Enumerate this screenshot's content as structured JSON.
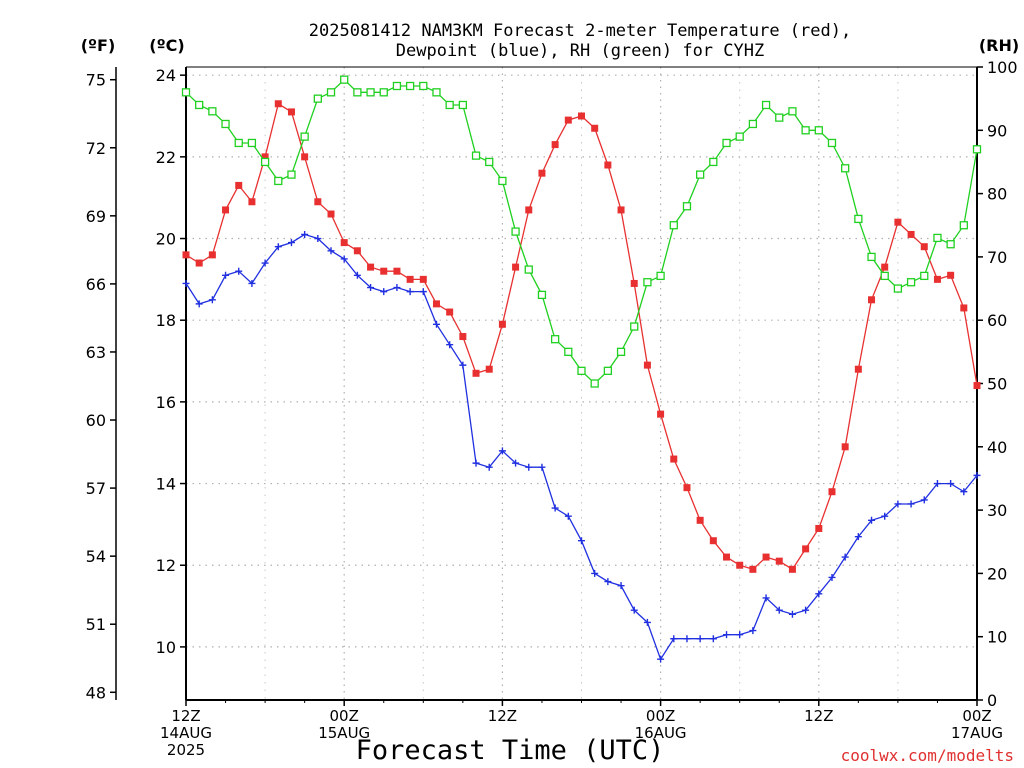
{
  "chart_data": {
    "type": "line",
    "title_line1": "2025081412 NAM3KM Forecast 2-meter Temperature (red),",
    "title_line2": "Dewpoint (blue), RH (green) for CYHZ",
    "xlabel": "Forecast Time (UTC)",
    "credit": "coolwx.com/modelts",
    "units": {
      "fahrenheit": "(ºF)",
      "celsius": "(ºC)",
      "rh": "(RH)"
    },
    "y_celsius": {
      "ticks": [
        "10",
        "12",
        "14",
        "16",
        "18",
        "20",
        "22",
        "24"
      ],
      "range": [
        8.7,
        24.2
      ]
    },
    "y_fahrenheit": {
      "ticks": [
        "48",
        "51",
        "54",
        "57",
        "60",
        "63",
        "66",
        "69",
        "72",
        "75"
      ]
    },
    "y_rh": {
      "ticks": [
        "0",
        "10",
        "20",
        "30",
        "40",
        "50",
        "60",
        "70",
        "80",
        "90",
        "100"
      ],
      "range": [
        0,
        100
      ]
    },
    "x_range_hours": [
      0,
      60
    ],
    "x_ticks": [
      {
        "hour": 0,
        "line1": "12Z",
        "line2": "14AUG",
        "line3": "2025"
      },
      {
        "hour": 12,
        "line1": "00Z",
        "line2": "15AUG",
        "line3": ""
      },
      {
        "hour": 24,
        "line1": "12Z",
        "line2": "",
        "line3": ""
      },
      {
        "hour": 36,
        "line1": "00Z",
        "line2": "16AUG",
        "line3": ""
      },
      {
        "hour": 48,
        "line1": "12Z",
        "line2": "",
        "line3": ""
      },
      {
        "hour": 60,
        "line1": "00Z",
        "line2": "17AUG",
        "line3": ""
      }
    ],
    "grid": true,
    "series": [
      {
        "name": "Temperature",
        "axis": "celsius",
        "color": "#e83030",
        "marker": "filled-square",
        "values": [
          19.6,
          19.4,
          19.6,
          20.7,
          21.3,
          20.9,
          22.0,
          23.3,
          23.1,
          22.0,
          20.9,
          20.6,
          19.9,
          19.7,
          19.3,
          19.2,
          19.2,
          19.0,
          19.0,
          18.4,
          18.2,
          17.6,
          16.7,
          16.8,
          17.9,
          19.3,
          20.7,
          21.6,
          22.3,
          22.9,
          23.0,
          22.7,
          21.8,
          20.7,
          18.9,
          16.9,
          15.7,
          14.6,
          13.9,
          13.1,
          12.6,
          12.2,
          12.0,
          11.9,
          12.2,
          12.1,
          11.9,
          12.4,
          12.9,
          13.8,
          14.9,
          16.8,
          18.5,
          19.3,
          20.4,
          20.1,
          19.8,
          19.0,
          19.1,
          18.3,
          16.4
        ]
      },
      {
        "name": "Dewpoint",
        "axis": "celsius",
        "color": "#2030e0",
        "marker": "plus",
        "values": [
          18.9,
          18.4,
          18.5,
          19.1,
          19.2,
          18.9,
          19.4,
          19.8,
          19.9,
          20.1,
          20.0,
          19.7,
          19.5,
          19.1,
          18.8,
          18.7,
          18.8,
          18.7,
          18.7,
          17.9,
          17.4,
          16.9,
          14.5,
          14.4,
          14.8,
          14.5,
          14.4,
          14.4,
          13.4,
          13.2,
          12.6,
          11.8,
          11.6,
          11.5,
          10.9,
          10.6,
          9.7,
          10.2,
          10.2,
          10.2,
          10.2,
          10.3,
          10.3,
          10.4,
          11.2,
          10.9,
          10.8,
          10.9,
          11.3,
          11.7,
          12.2,
          12.7,
          13.1,
          13.2,
          13.5,
          13.5,
          13.6,
          14.0,
          14.0,
          13.8,
          14.2
        ]
      },
      {
        "name": "RH",
        "axis": "rh",
        "color": "#20d020",
        "marker": "open-square",
        "values": [
          96,
          94,
          93,
          91,
          88,
          88,
          85,
          82,
          83,
          89,
          95,
          96,
          98,
          96,
          96,
          96,
          97,
          97,
          97,
          96,
          94,
          94,
          86,
          85,
          82,
          74,
          68,
          64,
          57,
          55,
          52,
          50,
          52,
          55,
          59,
          66,
          67,
          75,
          78,
          83,
          85,
          88,
          89,
          91,
          94,
          92,
          93,
          90,
          90,
          88,
          84,
          76,
          70,
          67,
          65,
          66,
          67,
          73,
          72,
          75,
          87
        ]
      }
    ]
  }
}
